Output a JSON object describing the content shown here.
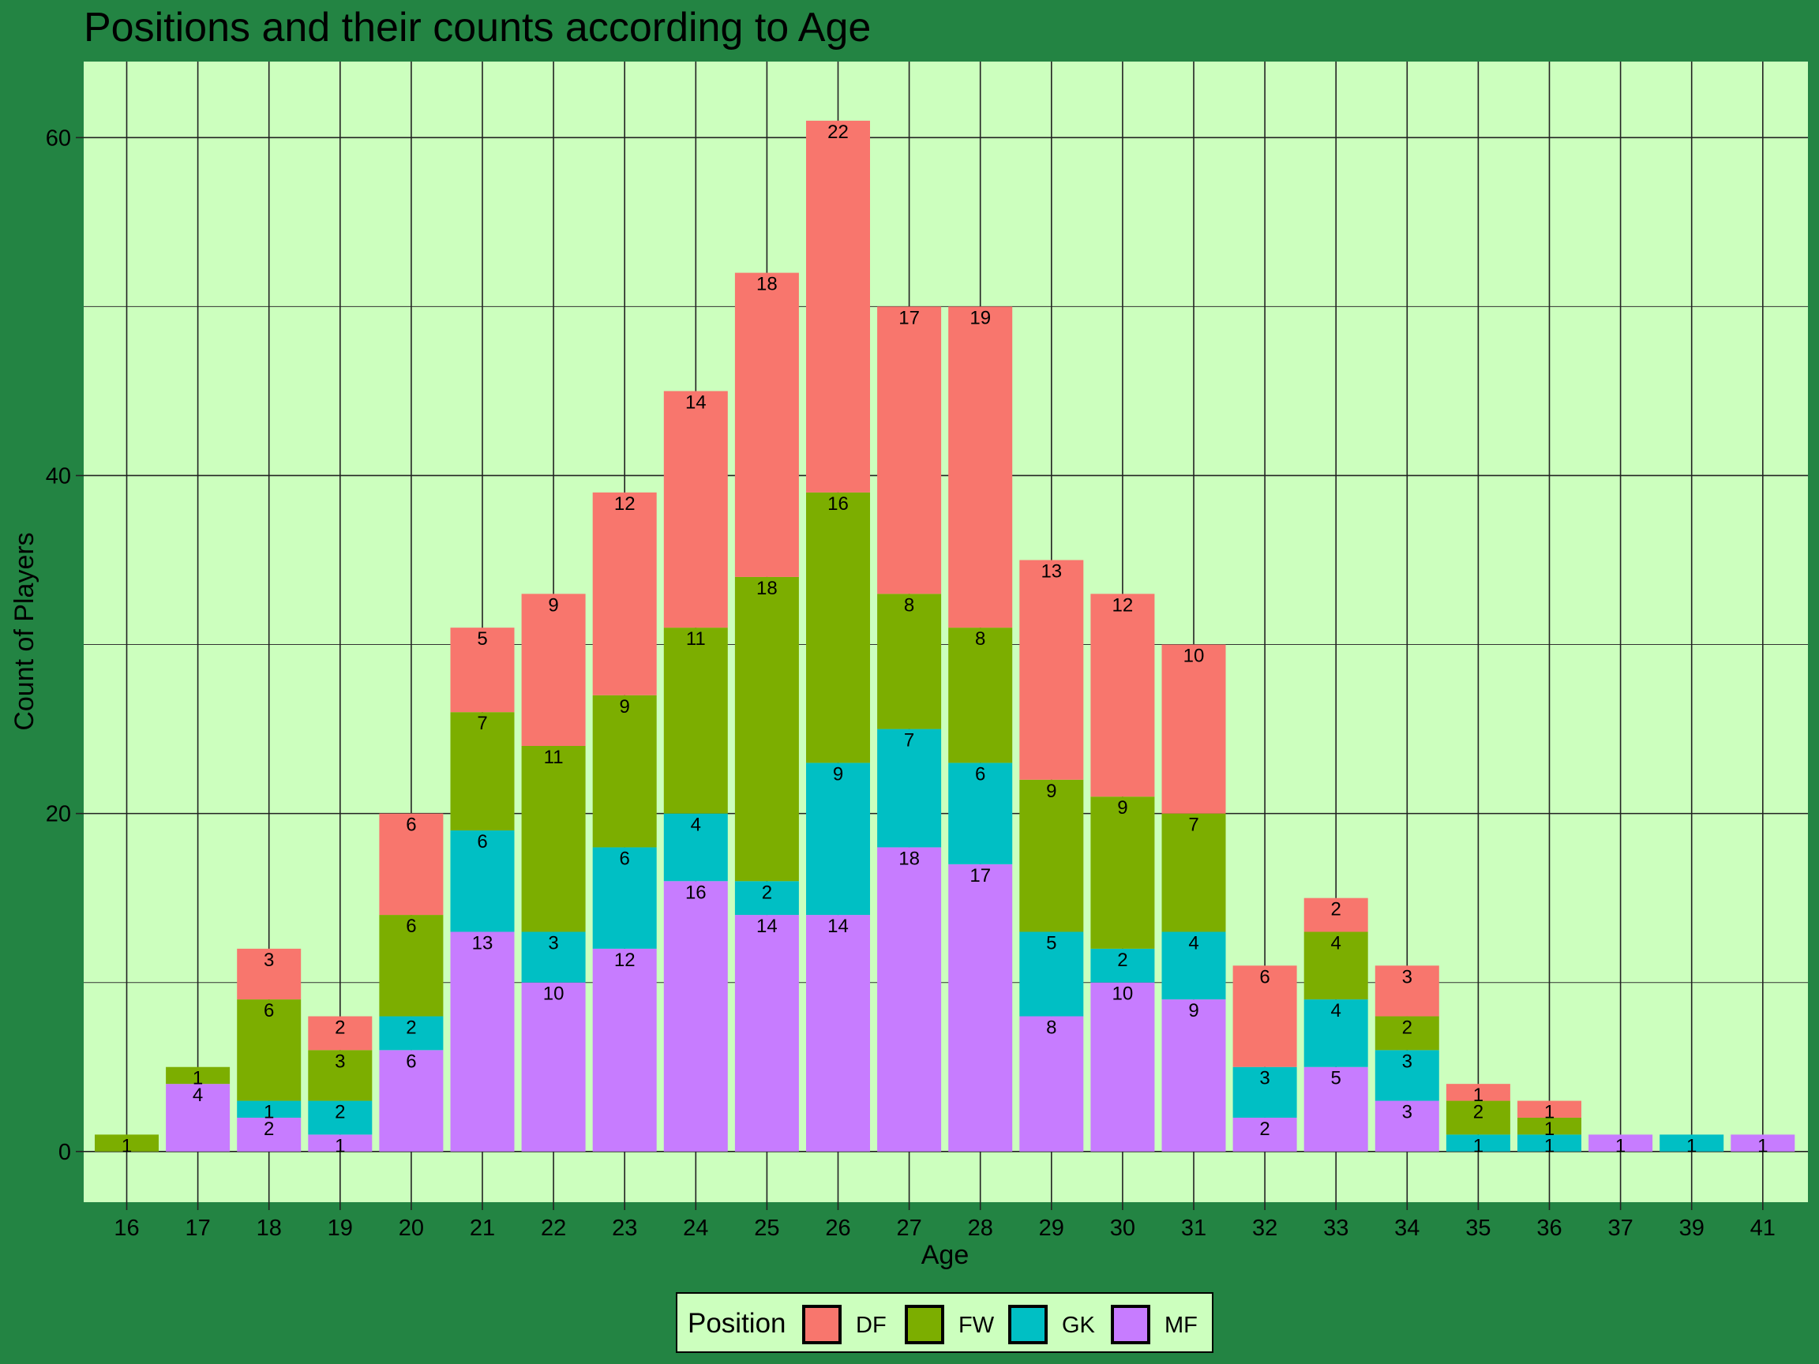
{
  "chart_data": {
    "type": "bar",
    "stacked": true,
    "title": "Positions and their counts according to Age",
    "xlabel": "Age",
    "ylabel": "Count of Players",
    "ylim": [
      -3,
      64.5
    ],
    "y_ticks": [
      0,
      20,
      40,
      60
    ],
    "grid": true,
    "legend_position": "bottom",
    "legend_title": "Position",
    "categories": [
      "16",
      "17",
      "18",
      "19",
      "20",
      "21",
      "22",
      "23",
      "24",
      "25",
      "26",
      "27",
      "28",
      "29",
      "30",
      "31",
      "32",
      "33",
      "34",
      "35",
      "36",
      "37",
      "39",
      "41"
    ],
    "series": [
      {
        "name": "MF",
        "color": "#C77CFF",
        "values": [
          0,
          4,
          2,
          1,
          6,
          13,
          10,
          12,
          16,
          14,
          14,
          18,
          17,
          8,
          10,
          9,
          2,
          5,
          3,
          0,
          0,
          1,
          0,
          1
        ]
      },
      {
        "name": "GK",
        "color": "#00BFC4",
        "values": [
          0,
          0,
          1,
          2,
          2,
          6,
          3,
          6,
          4,
          2,
          9,
          7,
          6,
          5,
          2,
          4,
          3,
          4,
          3,
          1,
          1,
          0,
          1,
          0
        ]
      },
      {
        "name": "FW",
        "color": "#7CAE00",
        "values": [
          1,
          1,
          6,
          3,
          6,
          7,
          11,
          9,
          11,
          18,
          16,
          8,
          8,
          9,
          9,
          7,
          0,
          4,
          2,
          2,
          1,
          0,
          0,
          0
        ]
      },
      {
        "name": "DF",
        "color": "#F8766D",
        "values": [
          0,
          0,
          3,
          2,
          6,
          5,
          9,
          12,
          14,
          18,
          22,
          17,
          19,
          13,
          12,
          10,
          6,
          2,
          3,
          1,
          1,
          0,
          0,
          0
        ]
      }
    ],
    "legend_order": [
      "DF",
      "FW",
      "GK",
      "MF"
    ]
  },
  "colors": {
    "page_background": "#238443",
    "panel_background": "#CCFFBE",
    "grid": "#222222"
  }
}
